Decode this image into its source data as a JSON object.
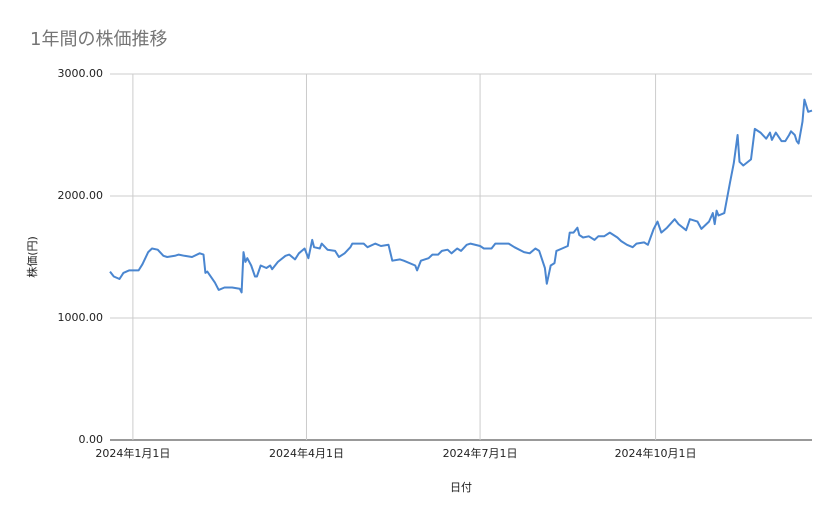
{
  "chart_data": {
    "type": "line",
    "title": "1年間の株価推移",
    "x_label": "日付",
    "y_label": "株価(円)",
    "x": [
      "2023-12-20",
      "2023-12-22",
      "2023-12-25",
      "2023-12-27",
      "2023-12-30",
      "2024-01-04",
      "2024-01-06",
      "2024-01-09",
      "2024-01-11",
      "2024-01-14",
      "2024-01-17",
      "2024-01-19",
      "2024-01-23",
      "2024-01-25",
      "2024-01-28",
      "2024-02-01",
      "2024-02-05",
      "2024-02-07",
      "2024-02-08",
      "2024-02-09",
      "2024-02-13",
      "2024-02-15",
      "2024-02-18",
      "2024-02-22",
      "2024-02-26",
      "2024-02-27",
      "2024-02-28",
      "2024-02-29",
      "2024-03-01",
      "2024-03-03",
      "2024-03-05",
      "2024-03-06",
      "2024-03-08",
      "2024-03-11",
      "2024-03-13",
      "2024-03-14",
      "2024-03-17",
      "2024-03-21",
      "2024-03-23",
      "2024-03-26",
      "2024-03-28",
      "2024-03-31",
      "2024-04-02",
      "2024-04-04",
      "2024-04-05",
      "2024-04-08",
      "2024-04-09",
      "2024-04-12",
      "2024-04-16",
      "2024-04-18",
      "2024-04-21",
      "2024-04-24",
      "2024-04-25",
      "2024-05-01",
      "2024-05-03",
      "2024-05-07",
      "2024-05-10",
      "2024-05-14",
      "2024-05-16",
      "2024-05-20",
      "2024-05-22",
      "2024-05-28",
      "2024-05-29",
      "2024-05-31",
      "2024-06-04",
      "2024-06-06",
      "2024-06-09",
      "2024-06-11",
      "2024-06-14",
      "2024-06-16",
      "2024-06-19",
      "2024-06-21",
      "2024-06-24",
      "2024-06-26",
      "2024-07-01",
      "2024-07-03",
      "2024-07-07",
      "2024-07-09",
      "2024-07-11",
      "2024-07-16",
      "2024-07-19",
      "2024-07-24",
      "2024-07-27",
      "2024-07-30",
      "2024-08-01",
      "2024-08-04",
      "2024-08-05",
      "2024-08-07",
      "2024-08-09",
      "2024-08-10",
      "2024-08-13",
      "2024-08-16",
      "2024-08-17",
      "2024-08-19",
      "2024-08-21",
      "2024-08-22",
      "2024-08-24",
      "2024-08-27",
      "2024-08-30",
      "2024-09-01",
      "2024-09-04",
      "2024-09-07",
      "2024-09-11",
      "2024-09-13",
      "2024-09-16",
      "2024-09-19",
      "2024-09-21",
      "2024-09-25",
      "2024-09-27",
      "2024-09-30",
      "2024-10-02",
      "2024-10-04",
      "2024-10-07",
      "2024-10-11",
      "2024-10-13",
      "2024-10-17",
      "2024-10-19",
      "2024-10-23",
      "2024-10-25",
      "2024-10-29",
      "2024-10-31",
      "2024-11-01",
      "2024-11-02",
      "2024-11-03",
      "2024-11-06",
      "2024-11-09",
      "2024-11-11",
      "2024-11-13",
      "2024-11-14",
      "2024-11-16",
      "2024-11-20",
      "2024-11-22",
      "2024-11-25",
      "2024-11-28",
      "2024-11-30",
      "2024-12-01",
      "2024-12-03",
      "2024-12-06",
      "2024-12-08",
      "2024-12-10",
      "2024-12-11",
      "2024-12-13",
      "2024-12-14",
      "2024-12-15",
      "2024-12-17",
      "2024-12-18",
      "2024-12-20",
      "2024-12-22"
    ],
    "series": [
      {
        "name": "株価",
        "color": "#4a86d0",
        "values": [
          1380,
          1340,
          1320,
          1370,
          1390,
          1390,
          1440,
          1540,
          1570,
          1560,
          1510,
          1500,
          1510,
          1520,
          1510,
          1500,
          1530,
          1520,
          1370,
          1380,
          1290,
          1230,
          1250,
          1250,
          1240,
          1210,
          1540,
          1460,
          1490,
          1430,
          1340,
          1340,
          1430,
          1410,
          1430,
          1400,
          1460,
          1510,
          1520,
          1480,
          1530,
          1570,
          1490,
          1640,
          1580,
          1570,
          1610,
          1560,
          1550,
          1500,
          1530,
          1580,
          1610,
          1610,
          1580,
          1610,
          1590,
          1600,
          1470,
          1480,
          1470,
          1430,
          1390,
          1470,
          1490,
          1520,
          1520,
          1550,
          1560,
          1530,
          1570,
          1550,
          1600,
          1610,
          1590,
          1570,
          1570,
          1610,
          1610,
          1610,
          1580,
          1540,
          1530,
          1570,
          1550,
          1410,
          1280,
          1430,
          1450,
          1550,
          1570,
          1590,
          1700,
          1700,
          1740,
          1680,
          1660,
          1670,
          1640,
          1670,
          1670,
          1700,
          1660,
          1630,
          1600,
          1580,
          1610,
          1620,
          1600,
          1730,
          1790,
          1700,
          1740,
          1810,
          1770,
          1720,
          1810,
          1790,
          1730,
          1790,
          1860,
          1770,
          1880,
          1840,
          1860,
          2110,
          2270,
          2500,
          2280,
          2250,
          2300,
          2550,
          2520,
          2470,
          2520,
          2460,
          2520,
          2450,
          2450,
          2500,
          2530,
          2500,
          2450,
          2430,
          2610,
          2790,
          2690,
          2700
        ]
      }
    ],
    "xlim": [
      "2023-12-20",
      "2024-12-22"
    ],
    "xticks": [
      {
        "value": "2024-01-01",
        "label": "2024年1月1日"
      },
      {
        "value": "2024-04-01",
        "label": "2024年4月1日"
      },
      {
        "value": "2024-07-01",
        "label": "2024年7月1日"
      },
      {
        "value": "2024-10-01",
        "label": "2024年10月1日"
      }
    ],
    "ylim": [
      0,
      3000
    ],
    "yticks": [
      {
        "value": 0,
        "label": "0.00"
      },
      {
        "value": 1000,
        "label": "1000.00"
      },
      {
        "value": 2000,
        "label": "2000.00"
      },
      {
        "value": 3000,
        "label": "3000.00"
      }
    ],
    "grid": true
  }
}
